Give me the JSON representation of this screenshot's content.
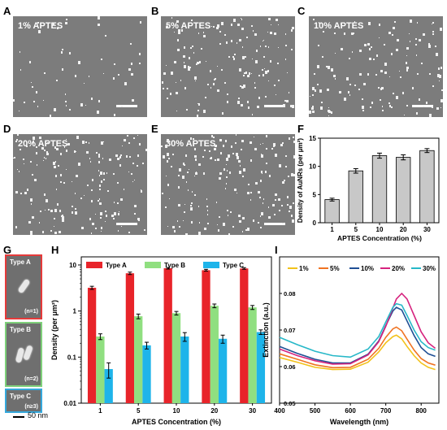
{
  "panels": {
    "A": {
      "letter": "A",
      "label": "1% APTES"
    },
    "B": {
      "letter": "B",
      "label": "5% APTES"
    },
    "C": {
      "letter": "C",
      "label": "10% APTES"
    },
    "D": {
      "letter": "D",
      "label": "20% APTES"
    },
    "E": {
      "letter": "E",
      "label": "30% APTES"
    },
    "F": {
      "letter": "F"
    },
    "G": {
      "letter": "G",
      "types": [
        {
          "label": "Type A",
          "n": "(n=1)",
          "color": "#e53a3a"
        },
        {
          "label": "Type B",
          "n": "(n=2)",
          "color": "#7ed07a"
        },
        {
          "label": "Type C",
          "n": "(n≥3)",
          "color": "#35a8dc"
        }
      ],
      "scale_label": "50 nm"
    },
    "H": {
      "letter": "H"
    },
    "I": {
      "letter": "I"
    }
  },
  "chart_data": [
    {
      "id": "F",
      "type": "bar",
      "categories": [
        "1",
        "5",
        "10",
        "20",
        "30"
      ],
      "values": [
        4.1,
        9.2,
        11.9,
        11.6,
        12.8
      ],
      "errors": [
        0.25,
        0.4,
        0.45,
        0.45,
        0.35
      ],
      "xlabel": "APTES Concentration (%)",
      "ylabel": "Density of AuNRs (per μm²)",
      "ylim": [
        0,
        15
      ],
      "yticks": [
        0,
        5,
        10,
        15
      ],
      "bar_color": "#c8c8c8"
    },
    {
      "id": "H",
      "type": "bar",
      "categories": [
        "1",
        "5",
        "10",
        "20",
        "30"
      ],
      "series": [
        {
          "name": "Type A",
          "color": "#e8242a",
          "values": [
            3.2,
            6.6,
            8.5,
            7.7,
            8.4
          ],
          "errors": [
            0.25,
            0.4,
            0.35,
            0.35,
            0.35
          ]
        },
        {
          "name": "Type B",
          "color": "#90df80",
          "values": [
            0.28,
            0.77,
            0.9,
            1.3,
            1.2
          ],
          "errors": [
            0.04,
            0.09,
            0.08,
            0.12,
            0.12
          ]
        },
        {
          "name": "Type C",
          "color": "#1eb4ea",
          "values": [
            0.055,
            0.18,
            0.28,
            0.25,
            0.35
          ],
          "errors": [
            0.02,
            0.03,
            0.06,
            0.05,
            0.04
          ]
        }
      ],
      "xlabel": "APTES Concentration (%)",
      "ylabel": "Density (per μm²)",
      "yscale": "log",
      "ylim": [
        0.01,
        15
      ],
      "yticks": [
        "0.01",
        "0.1",
        "1",
        "10"
      ],
      "legend": "top"
    },
    {
      "id": "I",
      "type": "line",
      "xlabel": "Wavelength (nm)",
      "ylabel": "Extinction (a.u.)",
      "xlim": [
        400,
        850
      ],
      "ylim": [
        0.05,
        0.09
      ],
      "xticks": [
        "400",
        "500",
        "600",
        "700",
        "800"
      ],
      "yticks": [
        "0.05",
        "0.06",
        "0.07",
        "0.08"
      ],
      "x": [
        400,
        450,
        500,
        550,
        600,
        650,
        680,
        700,
        720,
        730,
        745,
        760,
        780,
        800,
        820,
        840
      ],
      "series": [
        {
          "name": "1%",
          "color": "#f2c21b",
          "values": [
            0.0625,
            0.0612,
            0.0598,
            0.0592,
            0.0593,
            0.0612,
            0.064,
            0.0665,
            0.0682,
            0.0686,
            0.0676,
            0.0655,
            0.063,
            0.061,
            0.0598,
            0.0592
          ]
        },
        {
          "name": "5%",
          "color": "#f07322",
          "values": [
            0.0635,
            0.062,
            0.0605,
            0.0597,
            0.0598,
            0.062,
            0.065,
            0.068,
            0.0703,
            0.0708,
            0.0698,
            0.0675,
            0.0645,
            0.0622,
            0.061,
            0.0604
          ]
        },
        {
          "name": "10%",
          "color": "#1f4f95",
          "values": [
            0.0655,
            0.0636,
            0.062,
            0.061,
            0.061,
            0.0634,
            0.067,
            0.0712,
            0.0752,
            0.0762,
            0.0755,
            0.0725,
            0.0685,
            0.0652,
            0.0635,
            0.0628
          ]
        },
        {
          "name": "20%",
          "color": "#d6237e",
          "values": [
            0.0648,
            0.063,
            0.0616,
            0.0607,
            0.0608,
            0.0632,
            0.0668,
            0.071,
            0.076,
            0.0785,
            0.08,
            0.0785,
            0.074,
            0.0695,
            0.0665,
            0.065
          ]
        },
        {
          "name": "30%",
          "color": "#27b8c8",
          "values": [
            0.068,
            0.066,
            0.0642,
            0.063,
            0.0626,
            0.0648,
            0.0682,
            0.0722,
            0.0762,
            0.0772,
            0.0768,
            0.074,
            0.07,
            0.0668,
            0.0652,
            0.0645
          ]
        }
      ],
      "legend": "top"
    }
  ]
}
